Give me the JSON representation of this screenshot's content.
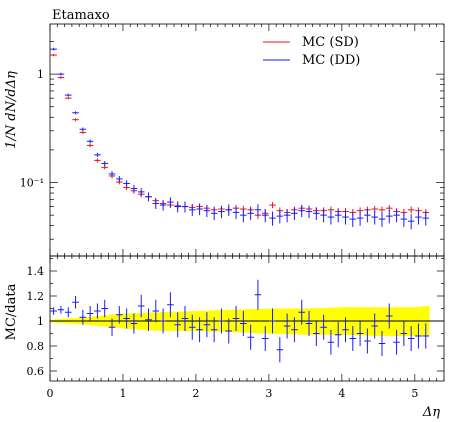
{
  "title": "Etamaxo",
  "colors": {
    "series_sd": "#e8141c",
    "series_dd": "#1a1aff",
    "band": "#ffff00",
    "axis": "#000000"
  },
  "chart_data": [
    {
      "type": "scatter",
      "title": "Etamaxo",
      "ylabel": "1/N dN/dΔη",
      "xlabel": "",
      "xlim": [
        0,
        5.4
      ],
      "ylim": [
        0.021,
        2.9
      ],
      "yscale": "log",
      "yticks": [
        0.1,
        1
      ],
      "ytick_labels": [
        "10⁻¹",
        "1"
      ],
      "legend": "top-right",
      "series": [
        {
          "name": "MC (SD)",
          "x": [
            0.05,
            0.15,
            0.25,
            0.35,
            0.45,
            0.55,
            0.65,
            0.75,
            0.85,
            0.95,
            1.05,
            1.15,
            1.25,
            1.35,
            1.45,
            1.55,
            1.65,
            1.75,
            1.85,
            1.95,
            2.05,
            2.15,
            2.25,
            2.35,
            2.45,
            2.55,
            2.65,
            2.75,
            2.85,
            2.95,
            3.05,
            3.15,
            3.25,
            3.35,
            3.45,
            3.55,
            3.65,
            3.75,
            3.85,
            3.95,
            4.05,
            4.15,
            4.25,
            4.35,
            4.45,
            4.55,
            4.65,
            4.75,
            4.85,
            4.95,
            5.05,
            5.15
          ],
          "y": [
            1.5,
            0.93,
            0.6,
            0.38,
            0.29,
            0.22,
            0.16,
            0.138,
            0.115,
            0.101,
            0.09,
            0.084,
            0.078,
            0.074,
            0.068,
            0.064,
            0.062,
            0.061,
            0.06,
            0.059,
            0.06,
            0.058,
            0.056,
            0.057,
            0.056,
            0.058,
            0.057,
            0.056,
            0.05,
            0.052,
            0.062,
            0.055,
            0.053,
            0.056,
            0.058,
            0.057,
            0.055,
            0.055,
            0.056,
            0.054,
            0.054,
            0.053,
            0.055,
            0.056,
            0.057,
            0.056,
            0.058,
            0.054,
            0.053,
            0.056,
            0.055,
            0.053
          ],
          "err": [
            0.04,
            0.025,
            0.015,
            0.012,
            0.01,
            0.008,
            0.007,
            0.006,
            0.006,
            0.005,
            0.005,
            0.005,
            0.005,
            0.004,
            0.004,
            0.004,
            0.004,
            0.004,
            0.004,
            0.004,
            0.004,
            0.004,
            0.004,
            0.004,
            0.004,
            0.004,
            0.004,
            0.004,
            0.004,
            0.004,
            0.004,
            0.004,
            0.004,
            0.004,
            0.004,
            0.004,
            0.004,
            0.004,
            0.004,
            0.004,
            0.004,
            0.004,
            0.004,
            0.004,
            0.004,
            0.004,
            0.004,
            0.004,
            0.004,
            0.004,
            0.004,
            0.004
          ]
        },
        {
          "name": "MC (DD)",
          "x": [
            0.05,
            0.15,
            0.25,
            0.35,
            0.45,
            0.55,
            0.65,
            0.75,
            0.85,
            0.95,
            1.05,
            1.15,
            1.25,
            1.35,
            1.45,
            1.55,
            1.65,
            1.75,
            1.85,
            1.95,
            2.05,
            2.15,
            2.25,
            2.35,
            2.45,
            2.55,
            2.65,
            2.75,
            2.85,
            2.95,
            3.05,
            3.15,
            3.25,
            3.35,
            3.45,
            3.55,
            3.65,
            3.75,
            3.85,
            3.95,
            4.05,
            4.15,
            4.25,
            4.35,
            4.45,
            4.55,
            4.65,
            4.75,
            4.85,
            4.95,
            5.05,
            5.15
          ],
          "y": [
            1.7,
            1.0,
            0.64,
            0.44,
            0.31,
            0.24,
            0.18,
            0.15,
            0.12,
            0.108,
            0.098,
            0.088,
            0.082,
            0.074,
            0.064,
            0.062,
            0.066,
            0.06,
            0.06,
            0.056,
            0.057,
            0.055,
            0.052,
            0.054,
            0.056,
            0.053,
            0.05,
            0.052,
            0.056,
            0.05,
            0.047,
            0.049,
            0.05,
            0.052,
            0.055,
            0.054,
            0.052,
            0.05,
            0.048,
            0.05,
            0.048,
            0.046,
            0.047,
            0.05,
            0.048,
            0.046,
            0.049,
            0.05,
            0.046,
            0.044,
            0.048,
            0.047
          ],
          "err": [
            0.05,
            0.03,
            0.02,
            0.014,
            0.012,
            0.01,
            0.008,
            0.008,
            0.007,
            0.007,
            0.007,
            0.007,
            0.007,
            0.007,
            0.007,
            0.007,
            0.007,
            0.007,
            0.007,
            0.007,
            0.007,
            0.007,
            0.007,
            0.007,
            0.007,
            0.007,
            0.007,
            0.007,
            0.007,
            0.007,
            0.007,
            0.007,
            0.007,
            0.007,
            0.007,
            0.007,
            0.007,
            0.007,
            0.007,
            0.007,
            0.007,
            0.007,
            0.007,
            0.007,
            0.007,
            0.007,
            0.007,
            0.007,
            0.007,
            0.007,
            0.007,
            0.007
          ]
        }
      ]
    },
    {
      "type": "scatter",
      "ylabel": "MC/data",
      "xlabel": "Δη",
      "xlim": [
        0,
        5.4
      ],
      "ylim": [
        0.52,
        1.52
      ],
      "yticks": [
        0.6,
        0.8,
        1,
        1.2,
        1.4
      ],
      "xticks": [
        0,
        1,
        2,
        3,
        4,
        5
      ],
      "band": {
        "x": [
          0,
          0.5,
          1,
          1.5,
          2,
          2.5,
          3,
          3.5,
          4,
          4.5,
          5,
          5.2
        ],
        "lower": [
          0.99,
          0.97,
          0.94,
          0.92,
          0.92,
          0.91,
          0.9,
          0.89,
          0.89,
          0.88,
          0.88,
          0.88
        ],
        "upper": [
          1.01,
          1.03,
          1.06,
          1.07,
          1.08,
          1.09,
          1.1,
          1.1,
          1.11,
          1.11,
          1.11,
          1.12
        ]
      },
      "series": [
        {
          "name": "MC (DD)",
          "x": [
            0.05,
            0.15,
            0.25,
            0.35,
            0.45,
            0.55,
            0.65,
            0.75,
            0.85,
            0.95,
            1.05,
            1.15,
            1.25,
            1.35,
            1.45,
            1.55,
            1.65,
            1.75,
            1.85,
            1.95,
            2.05,
            2.15,
            2.25,
            2.35,
            2.45,
            2.55,
            2.65,
            2.75,
            2.85,
            2.95,
            3.05,
            3.15,
            3.25,
            3.35,
            3.45,
            3.55,
            3.65,
            3.75,
            3.85,
            3.95,
            4.05,
            4.15,
            4.25,
            4.35,
            4.45,
            4.55,
            4.65,
            4.75,
            4.85,
            4.95,
            5.05,
            5.15
          ],
          "y": [
            1.08,
            1.09,
            1.07,
            1.15,
            1.03,
            1.06,
            1.08,
            1.1,
            0.95,
            1.05,
            1.02,
            0.98,
            1.12,
            1.01,
            1.08,
            1.0,
            1.13,
            0.97,
            1.02,
            0.95,
            0.93,
            0.97,
            0.93,
            1.0,
            0.92,
            1.02,
            0.98,
            0.87,
            1.21,
            0.86,
            1.0,
            0.77,
            0.96,
            0.93,
            1.07,
            0.98,
            0.9,
            0.95,
            0.83,
            0.89,
            0.93,
            0.86,
            0.9,
            0.84,
            0.96,
            0.82,
            1.04,
            0.83,
            0.9,
            0.86,
            0.88,
            0.88
          ],
          "err": [
            0.03,
            0.03,
            0.04,
            0.05,
            0.06,
            0.06,
            0.06,
            0.07,
            0.07,
            0.07,
            0.08,
            0.08,
            0.09,
            0.09,
            0.09,
            0.1,
            0.1,
            0.1,
            0.1,
            0.1,
            0.1,
            0.1,
            0.1,
            0.1,
            0.1,
            0.1,
            0.1,
            0.1,
            0.12,
            0.1,
            0.1,
            0.1,
            0.1,
            0.1,
            0.1,
            0.1,
            0.1,
            0.1,
            0.1,
            0.1,
            0.1,
            0.1,
            0.1,
            0.1,
            0.1,
            0.1,
            0.1,
            0.1,
            0.1,
            0.1,
            0.1,
            0.1
          ]
        }
      ]
    }
  ]
}
